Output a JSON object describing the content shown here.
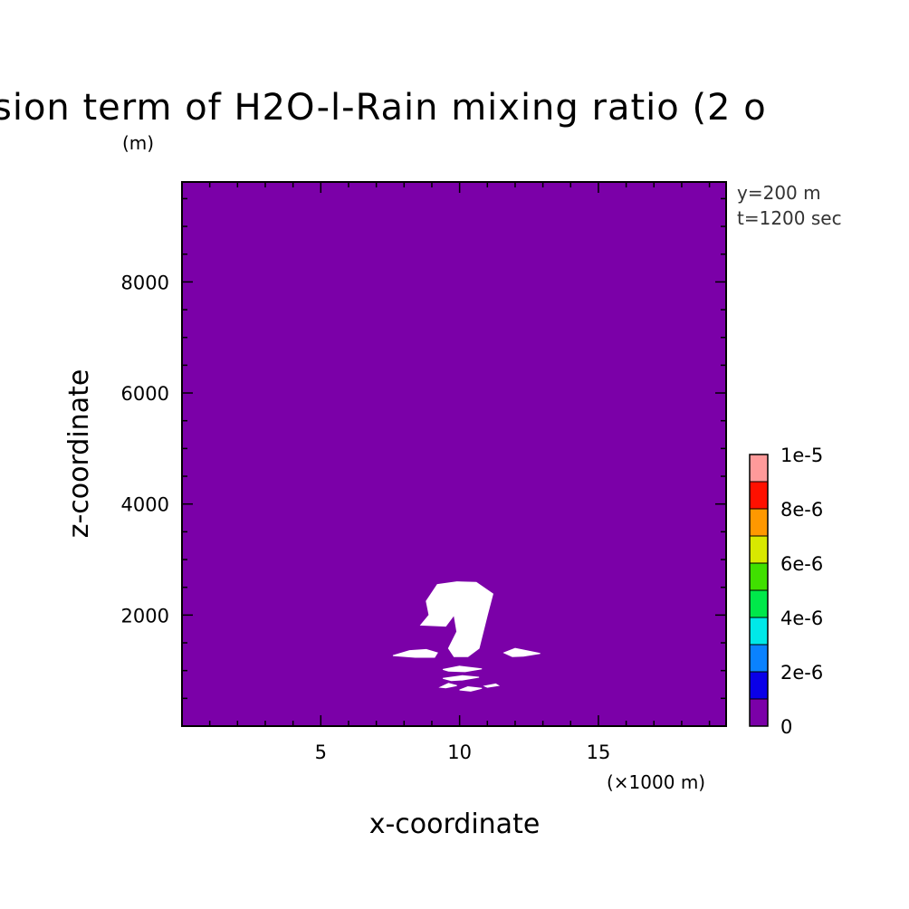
{
  "chart_data": {
    "type": "heatmap",
    "title": "sion term of H2O-l-Rain mixing ratio (2 o",
    "xlabel": "x-coordinate",
    "ylabel": "z-coordinate",
    "x_unit": "(×1000 m)",
    "y_unit": "(m)",
    "xlim": [
      0,
      19.6
    ],
    "ylim": [
      0,
      9800
    ],
    "x_ticks": [
      5,
      10,
      15
    ],
    "x_tick_labels": [
      "5",
      "10",
      "15"
    ],
    "y_ticks": [
      2000,
      4000,
      6000,
      8000
    ],
    "y_tick_labels": [
      "2000",
      "4000",
      "6000",
      "8000"
    ],
    "info": [
      "y=200 m",
      "t=1200 sec"
    ],
    "background_level": "0",
    "colorbar": {
      "levels": [
        0,
        1e-06,
        2e-06,
        3e-06,
        4e-06,
        5e-06,
        6e-06,
        7e-06,
        8e-06,
        9e-06,
        1e-05
      ],
      "colors": [
        "#7b00a8",
        "#0a00e8",
        "#0a82ff",
        "#00e8e8",
        "#00e84a",
        "#40e000",
        "#d8e800",
        "#ff9800",
        "#ff1000",
        "#ff9a9a"
      ],
      "tick_values": [
        0,
        2e-06,
        4e-06,
        6e-06,
        8e-06,
        1e-05
      ],
      "tick_labels": [
        "0",
        "2e-6",
        "4e-6",
        "6e-6",
        "8e-6",
        "1e-5"
      ]
    },
    "undefined_regions": [
      [
        [
          9.2,
          2550
        ],
        [
          9.9,
          2600
        ],
        [
          10.6,
          2590
        ],
        [
          11.2,
          2380
        ],
        [
          11.0,
          2000
        ],
        [
          10.7,
          1400
        ],
        [
          10.3,
          1250
        ],
        [
          9.8,
          1250
        ],
        [
          9.6,
          1400
        ],
        [
          9.9,
          1700
        ],
        [
          9.8,
          2000
        ],
        [
          9.5,
          1800
        ],
        [
          8.6,
          1820
        ],
        [
          8.9,
          2000
        ],
        [
          8.8,
          2250
        ]
      ],
      [
        [
          7.6,
          1270
        ],
        [
          8.2,
          1360
        ],
        [
          8.8,
          1380
        ],
        [
          9.2,
          1320
        ],
        [
          9.1,
          1240
        ],
        [
          8.4,
          1240
        ]
      ],
      [
        [
          11.6,
          1320
        ],
        [
          12.0,
          1400
        ],
        [
          12.5,
          1350
        ],
        [
          12.9,
          1310
        ],
        [
          12.3,
          1260
        ],
        [
          11.9,
          1250
        ]
      ],
      [
        [
          9.4,
          1020
        ],
        [
          10.0,
          1080
        ],
        [
          10.8,
          1030
        ],
        [
          10.2,
          980
        ],
        [
          9.6,
          990
        ]
      ],
      [
        [
          9.4,
          860
        ],
        [
          10.1,
          910
        ],
        [
          10.7,
          880
        ],
        [
          10.1,
          830
        ],
        [
          9.7,
          820
        ]
      ],
      [
        [
          9.3,
          700
        ],
        [
          9.6,
          770
        ],
        [
          9.9,
          730
        ],
        [
          9.5,
          690
        ]
      ],
      [
        [
          10.0,
          650
        ],
        [
          10.3,
          710
        ],
        [
          10.8,
          680
        ],
        [
          10.4,
          630
        ]
      ],
      [
        [
          10.9,
          720
        ],
        [
          11.3,
          760
        ],
        [
          11.4,
          730
        ],
        [
          11.0,
          700
        ]
      ]
    ]
  }
}
